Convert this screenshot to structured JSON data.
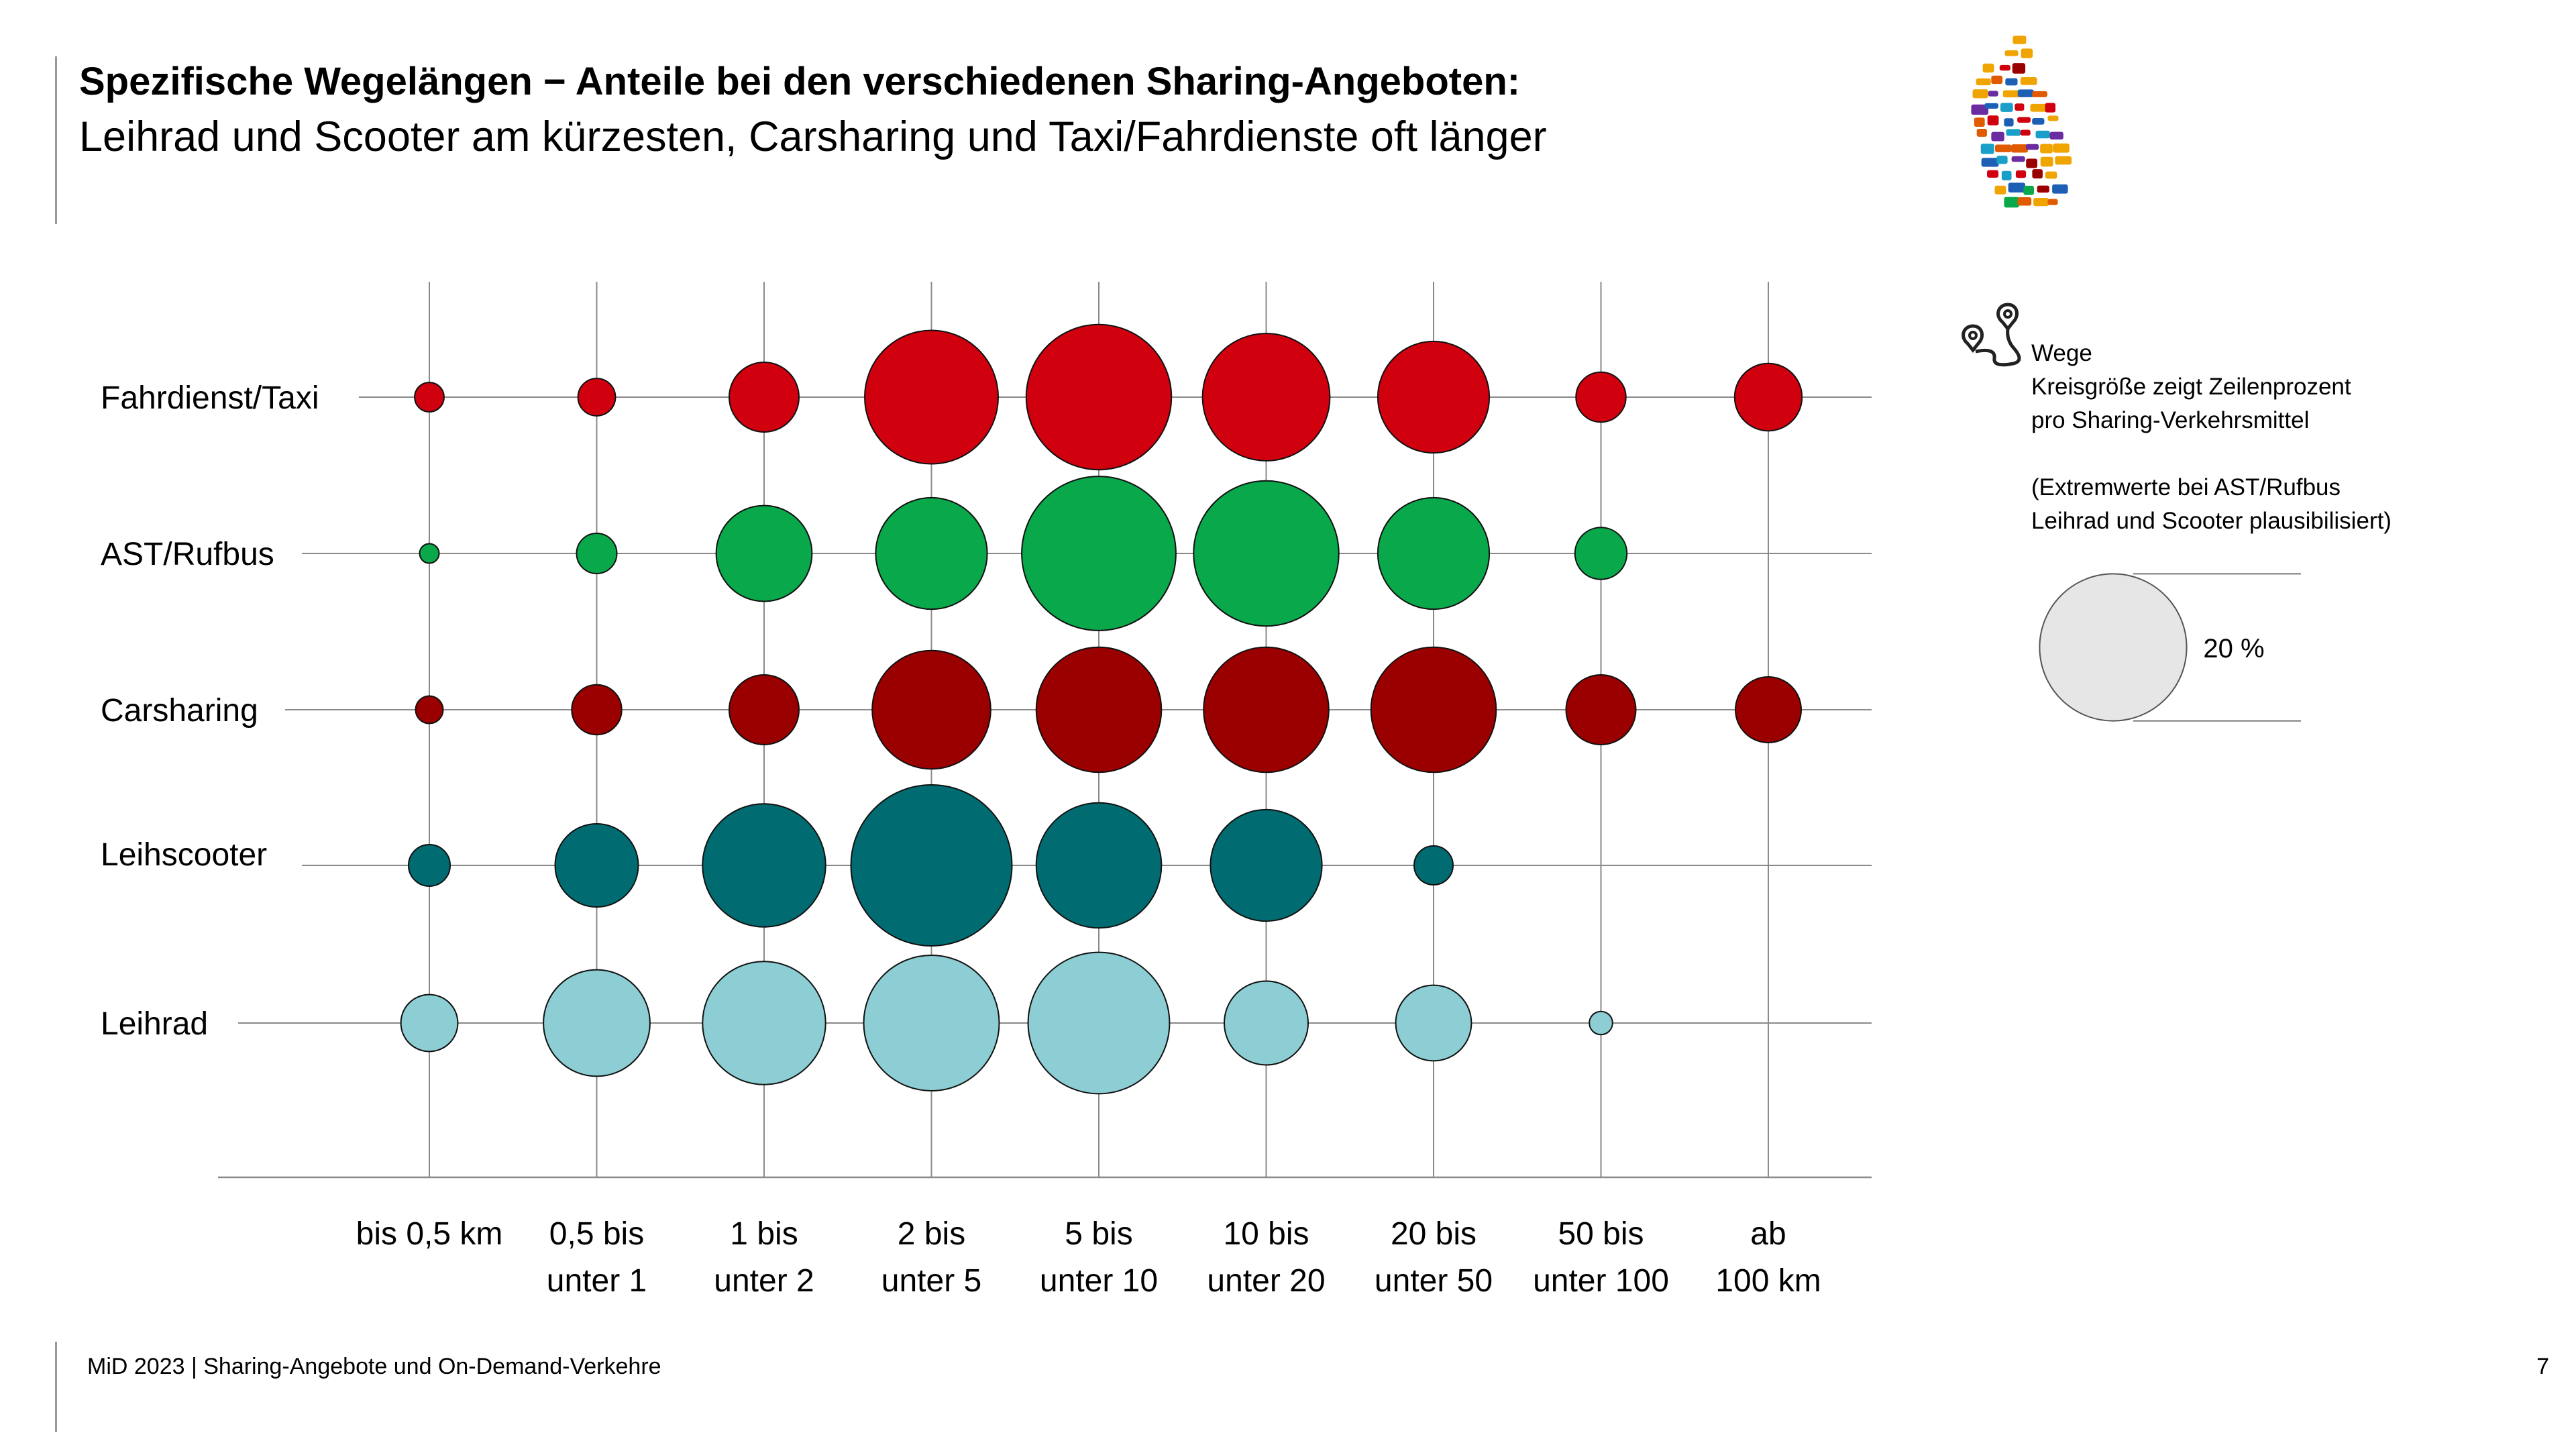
{
  "header": {
    "title": "Spezifische Wegelängen − Anteile bei den verschiedenen Sharing-Angeboten:",
    "subtitle": "Leihrad und Scooter am kürzesten, Carsharing und Taxi/Fahrdienste oft länger"
  },
  "legend": {
    "line1": "Wege",
    "line2": "Kreisgröße zeigt Zeilenprozent",
    "line3": "pro Sharing-Verkehrsmittel",
    "line4": "(Extremwerte bei AST/Rufbus",
    "line5": "Leihrad und Scooter plausibilisiert)",
    "sample_label": "20 %",
    "sample_value": 20,
    "icon": "route-pin-icon"
  },
  "footer": {
    "text": "MiD 2023 | Sharing-Angebote und On-Demand-Verkehre",
    "page": "7"
  },
  "chart_data": {
    "type": "bubble",
    "x_categories": [
      [
        "bis 0,5 km"
      ],
      [
        "0,5 bis",
        "unter 1"
      ],
      [
        "1 bis",
        "unter 2"
      ],
      [
        "2 bis",
        "unter 5"
      ],
      [
        "5 bis",
        "unter 10"
      ],
      [
        "10 bis",
        "unter 20"
      ],
      [
        "20 bis",
        "unter 50"
      ],
      [
        "50 bis",
        "unter 100"
      ],
      [
        "ab",
        "100 km"
      ]
    ],
    "series": [
      {
        "name": "Fahrdienst/Taxi",
        "color": "#d0000f",
        "values": [
          0.8,
          1.3,
          4.5,
          16.5,
          19.5,
          15.0,
          11.5,
          2.3,
          4.2
        ]
      },
      {
        "name": "AST/Rufbus",
        "color": "#09a84a",
        "values": [
          0.35,
          1.5,
          8.5,
          11.5,
          22.0,
          19.5,
          11.5,
          2.5,
          null
        ]
      },
      {
        "name": "Carsharing",
        "color": "#9a0000",
        "values": [
          0.7,
          2.3,
          4.5,
          13.0,
          14.5,
          14.5,
          14.5,
          4.5,
          4.0
        ]
      },
      {
        "name": "Leihscooter",
        "color": "#006c72",
        "values": [
          1.6,
          6.4,
          14.0,
          24.0,
          14.5,
          11.5,
          1.4,
          null,
          null
        ]
      },
      {
        "name": "Leihrad",
        "color": "#8cced4",
        "values": [
          3.0,
          10.5,
          14.0,
          17.0,
          18.5,
          6.5,
          5.3,
          0.5,
          null
        ]
      }
    ]
  }
}
